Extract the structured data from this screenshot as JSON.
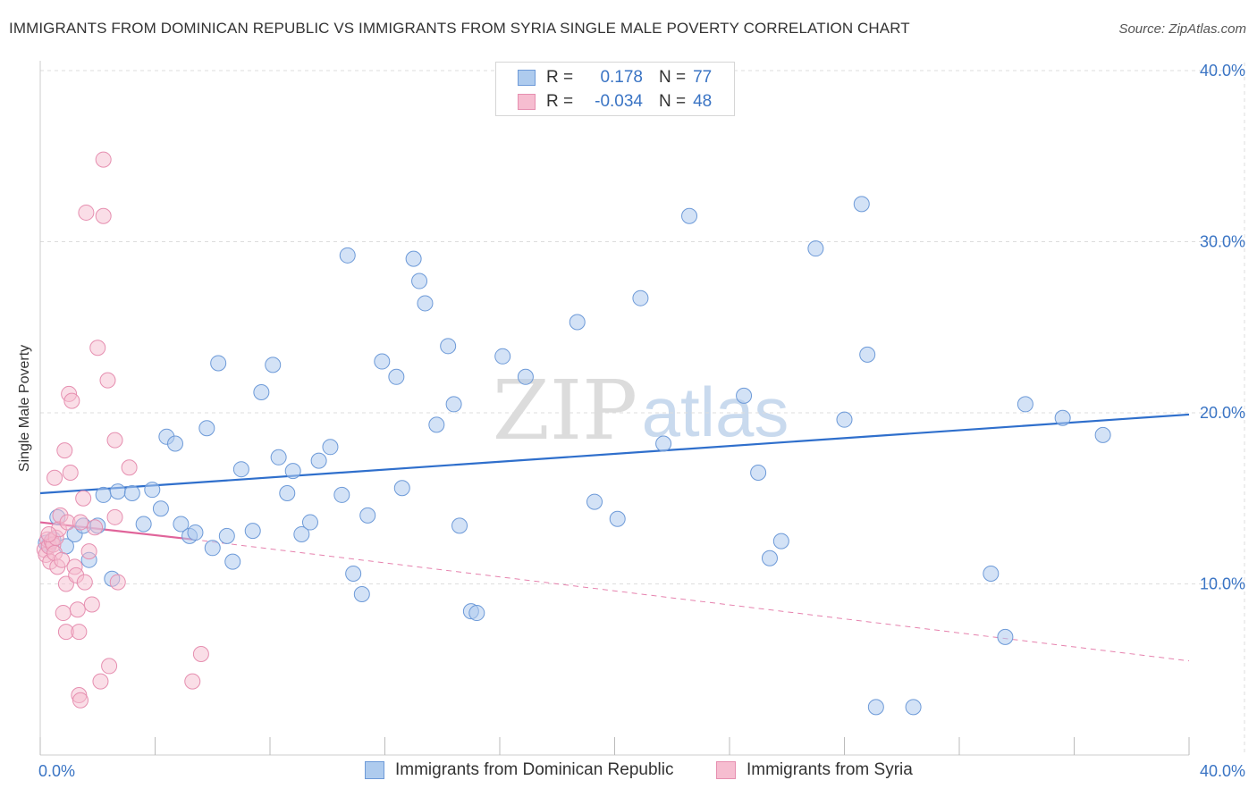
{
  "title": "IMMIGRANTS FROM DOMINICAN REPUBLIC VS IMMIGRANTS FROM SYRIA SINGLE MALE POVERTY CORRELATION CHART",
  "source": "Source: ZipAtlas.com",
  "watermark": {
    "zip": "ZIP",
    "atlas": "atlas"
  },
  "legend": {
    "rows": [
      {
        "r_label": "R =",
        "r_value": "0.178",
        "n_label": "N =",
        "n_value": "77"
      },
      {
        "r_label": "R =",
        "r_value": "-0.034",
        "n_label": "N =",
        "n_value": "48"
      }
    ]
  },
  "bottom_legend": {
    "series1": "Immigrants from Dominican Republic",
    "series2": "Immigrants from Syria"
  },
  "colors": {
    "blue_fill": "#aecbee",
    "blue_stroke": "#6d9ad8",
    "blue_line": "#2f6fcc",
    "pink_fill": "#f6bdd0",
    "pink_stroke": "#e68fb0",
    "pink_line": "#e0649a",
    "grid": "#dddddd",
    "tick_text": "#3a74c4"
  },
  "chart_data": {
    "type": "scatter",
    "title": "IMMIGRANTS FROM DOMINICAN REPUBLIC VS IMMIGRANTS FROM SYRIA SINGLE MALE POVERTY CORRELATION CHART",
    "xlabel": "",
    "ylabel": "Single Male Poverty",
    "xlim": [
      0,
      40
    ],
    "ylim": [
      0,
      40
    ],
    "x_tick_labels": [
      "0.0%",
      "40.0%"
    ],
    "y_ticks": [
      10,
      20,
      30,
      40
    ],
    "y_tick_labels": [
      "10.0%",
      "20.0%",
      "30.0%",
      "40.0%"
    ],
    "series": [
      {
        "name": "Immigrants from Dominican Republic",
        "color": "#6d9ad8",
        "trend": {
          "x": [
            0,
            40
          ],
          "y": [
            15.3,
            19.9
          ]
        },
        "points": [
          [
            0.3,
            12.3
          ],
          [
            0.45,
            12.6
          ],
          [
            0.6,
            13.9
          ],
          [
            0.9,
            12.2
          ],
          [
            1.2,
            12.9
          ],
          [
            1.5,
            13.4
          ],
          [
            1.7,
            11.4
          ],
          [
            2.0,
            13.4
          ],
          [
            2.2,
            15.2
          ],
          [
            2.5,
            10.3
          ],
          [
            2.7,
            15.4
          ],
          [
            3.2,
            15.3
          ],
          [
            3.6,
            13.5
          ],
          [
            3.9,
            15.5
          ],
          [
            4.2,
            14.4
          ],
          [
            4.4,
            18.6
          ],
          [
            4.7,
            18.2
          ],
          [
            4.9,
            13.5
          ],
          [
            5.2,
            12.8
          ],
          [
            5.4,
            13.0
          ],
          [
            5.8,
            19.1
          ],
          [
            6.0,
            12.1
          ],
          [
            6.2,
            22.9
          ],
          [
            6.5,
            12.8
          ],
          [
            6.7,
            11.3
          ],
          [
            7.0,
            16.7
          ],
          [
            7.4,
            13.1
          ],
          [
            7.7,
            21.2
          ],
          [
            8.1,
            22.8
          ],
          [
            8.3,
            17.4
          ],
          [
            8.6,
            15.3
          ],
          [
            8.8,
            16.6
          ],
          [
            9.1,
            12.9
          ],
          [
            9.4,
            13.6
          ],
          [
            9.7,
            17.2
          ],
          [
            10.1,
            18.0
          ],
          [
            10.5,
            15.2
          ],
          [
            10.7,
            29.2
          ],
          [
            10.9,
            10.6
          ],
          [
            11.2,
            9.4
          ],
          [
            11.4,
            14.0
          ],
          [
            11.9,
            23.0
          ],
          [
            12.4,
            22.1
          ],
          [
            12.6,
            15.6
          ],
          [
            13.0,
            29.0
          ],
          [
            13.2,
            27.7
          ],
          [
            13.4,
            26.4
          ],
          [
            13.8,
            19.3
          ],
          [
            14.2,
            23.9
          ],
          [
            14.4,
            20.5
          ],
          [
            14.6,
            13.4
          ],
          [
            15.0,
            8.4
          ],
          [
            15.2,
            8.3
          ],
          [
            16.1,
            23.3
          ],
          [
            16.9,
            22.1
          ],
          [
            18.7,
            25.3
          ],
          [
            19.3,
            14.8
          ],
          [
            20.1,
            13.8
          ],
          [
            20.9,
            26.7
          ],
          [
            21.7,
            18.2
          ],
          [
            22.6,
            31.5
          ],
          [
            24.5,
            21.0
          ],
          [
            25.0,
            16.5
          ],
          [
            25.4,
            11.5
          ],
          [
            25.8,
            12.5
          ],
          [
            27.0,
            29.6
          ],
          [
            28.0,
            19.6
          ],
          [
            28.6,
            32.2
          ],
          [
            28.8,
            23.4
          ],
          [
            29.1,
            2.8
          ],
          [
            30.4,
            2.8
          ],
          [
            33.1,
            10.6
          ],
          [
            33.6,
            6.9
          ],
          [
            34.3,
            20.5
          ],
          [
            35.6,
            19.7
          ],
          [
            37.0,
            18.7
          ],
          [
            0.2,
            12.4
          ]
        ]
      },
      {
        "name": "Immigrants from Syria",
        "color": "#e68fb0",
        "trend": {
          "x": [
            0,
            5.3
          ],
          "y": [
            13.6,
            12.6
          ]
        },
        "trend_dashed": {
          "x": [
            5.3,
            40
          ],
          "y": [
            12.6,
            5.5
          ]
        },
        "points": [
          [
            0.15,
            12.0
          ],
          [
            0.2,
            11.7
          ],
          [
            0.25,
            12.6
          ],
          [
            0.3,
            12.2
          ],
          [
            0.35,
            11.3
          ],
          [
            0.4,
            12.5
          ],
          [
            0.45,
            12.3
          ],
          [
            0.5,
            11.8
          ],
          [
            0.5,
            16.2
          ],
          [
            0.55,
            12.7
          ],
          [
            0.6,
            11.0
          ],
          [
            0.65,
            13.2
          ],
          [
            0.7,
            14.0
          ],
          [
            0.75,
            11.4
          ],
          [
            0.8,
            8.3
          ],
          [
            0.85,
            17.8
          ],
          [
            0.9,
            7.2
          ],
          [
            0.9,
            10.0
          ],
          [
            0.95,
            13.6
          ],
          [
            1.0,
            21.1
          ],
          [
            1.05,
            16.5
          ],
          [
            1.1,
            20.7
          ],
          [
            1.2,
            11.0
          ],
          [
            1.25,
            10.5
          ],
          [
            1.3,
            8.5
          ],
          [
            1.35,
            7.2
          ],
          [
            1.35,
            3.5
          ],
          [
            1.4,
            3.2
          ],
          [
            1.4,
            13.6
          ],
          [
            1.5,
            15.0
          ],
          [
            1.55,
            10.1
          ],
          [
            1.6,
            31.7
          ],
          [
            1.7,
            11.9
          ],
          [
            1.8,
            8.8
          ],
          [
            1.9,
            13.3
          ],
          [
            2.0,
            23.8
          ],
          [
            2.2,
            31.5
          ],
          [
            2.1,
            4.3
          ],
          [
            2.2,
            34.8
          ],
          [
            2.35,
            21.9
          ],
          [
            2.4,
            5.2
          ],
          [
            2.6,
            13.9
          ],
          [
            2.6,
            18.4
          ],
          [
            2.7,
            10.1
          ],
          [
            3.1,
            16.8
          ],
          [
            5.3,
            4.3
          ],
          [
            5.6,
            5.9
          ],
          [
            0.3,
            12.9
          ]
        ]
      }
    ]
  }
}
